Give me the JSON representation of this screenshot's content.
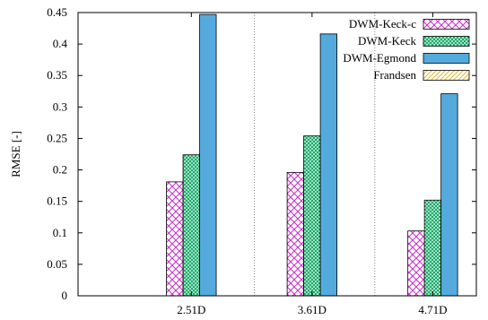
{
  "chart_data": {
    "type": "bar",
    "title": "",
    "xlabel": "",
    "ylabel": "RMSE [-]",
    "categories": [
      "2.51D",
      "3.61D",
      "4.71D"
    ],
    "ylim": [
      0,
      0.45
    ],
    "yticks": [
      "0",
      "0.05",
      "0.1",
      "0.15",
      "0.2",
      "0.25",
      "0.3",
      "0.35",
      "0.4",
      "0.45"
    ],
    "grid": "dotted vertical lines at category separators and top-right",
    "legend_position": "top-right",
    "series": [
      {
        "name": "DWM-Keck-c",
        "values": [
          0.181,
          0.196,
          0.103
        ],
        "color": "#cc33cc",
        "pattern": "crosshatch"
      },
      {
        "name": "DWM-Keck",
        "values": [
          0.224,
          0.254,
          0.152
        ],
        "color": "#11aa66",
        "pattern": "dense-check"
      },
      {
        "name": "DWM-Egmond",
        "values": [
          0.447,
          0.416,
          0.321
        ],
        "color": "#55aadd",
        "pattern": "solid"
      },
      {
        "name": "Frandsen",
        "values": [
          null,
          null,
          null
        ],
        "color": "#e6b830",
        "pattern": "diagonal"
      }
    ]
  }
}
